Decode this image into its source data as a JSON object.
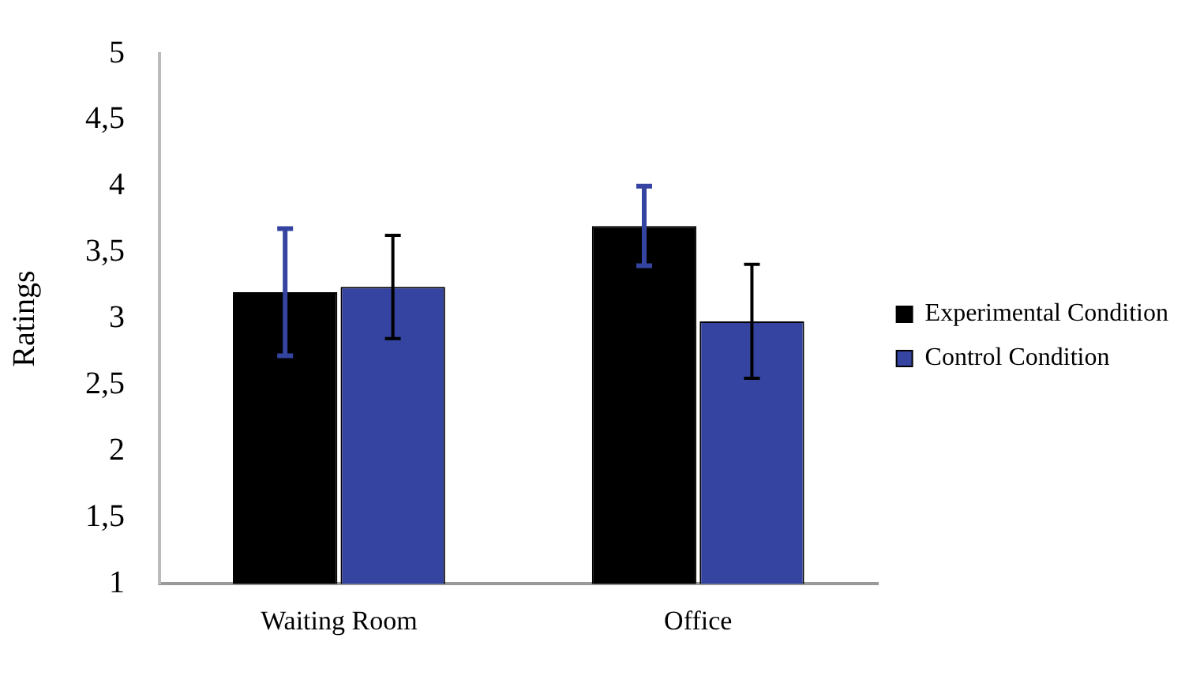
{
  "chart_data": {
    "type": "bar",
    "ylabel": "Ratings",
    "categories": [
      "Waiting Room",
      "Office"
    ],
    "series": [
      {
        "name": "Experimental Condition",
        "color": "#000000",
        "values": [
          3.2,
          3.7
        ],
        "errors": [
          0.48,
          0.3
        ]
      },
      {
        "name": "Control Condition",
        "color": "#3444a0",
        "values": [
          3.24,
          2.98
        ],
        "errors": [
          0.39,
          0.43
        ]
      }
    ],
    "ylim": [
      1,
      5
    ],
    "yticks": [
      1,
      {
        "value": 1.5,
        "label": "1,5"
      },
      2,
      {
        "value": 2.5,
        "label": "2,5"
      },
      3,
      {
        "value": 3.5,
        "label": "3,5"
      },
      4,
      {
        "value": 4.5,
        "label": "4,5"
      },
      5
    ],
    "grid": false,
    "legend": "right"
  }
}
